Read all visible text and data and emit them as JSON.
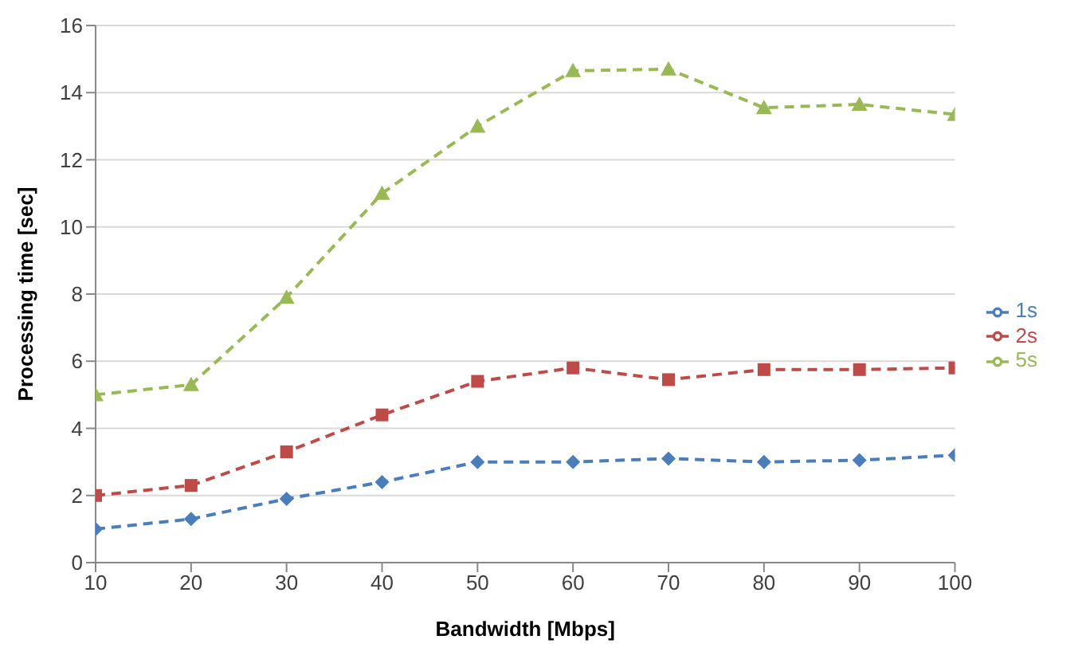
{
  "chart_data": {
    "type": "line",
    "xlabel": "Bandwidth [Mbps]",
    "ylabel": "Processing time [sec]",
    "x": [
      10,
      20,
      30,
      40,
      50,
      60,
      70,
      80,
      90,
      100
    ],
    "series": [
      {
        "name": "1s",
        "color": "#4a7ebb",
        "marker": "diamond",
        "values": [
          1.0,
          1.3,
          1.9,
          2.4,
          3.0,
          3.0,
          3.1,
          3.0,
          3.05,
          3.2
        ]
      },
      {
        "name": "2s",
        "color": "#be4b48",
        "marker": "square",
        "values": [
          2.0,
          2.3,
          3.3,
          4.4,
          5.4,
          5.8,
          5.45,
          5.75,
          5.75,
          5.8
        ]
      },
      {
        "name": "5s",
        "color": "#98b954",
        "marker": "triangle",
        "values": [
          5.0,
          5.3,
          7.9,
          11.0,
          13.0,
          14.65,
          14.7,
          13.55,
          13.65,
          13.35
        ]
      }
    ],
    "xlim": [
      10,
      100
    ],
    "xticks": [
      10,
      20,
      30,
      40,
      50,
      60,
      70,
      80,
      90,
      100
    ],
    "ylim": [
      0,
      16
    ],
    "yticks": [
      0,
      2,
      4,
      6,
      8,
      10,
      12,
      14,
      16
    ],
    "grid": "y",
    "legend": "right",
    "line_style": "dashed"
  }
}
